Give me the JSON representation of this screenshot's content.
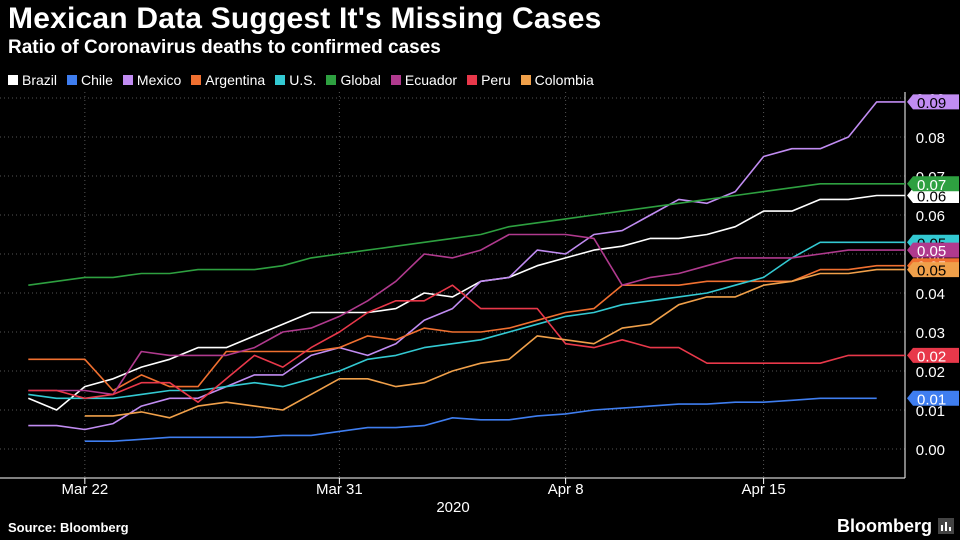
{
  "title": "Mexican Data Suggest It's Missing Cases",
  "subtitle": "Ratio of Coronavirus deaths to confirmed cases",
  "source": "Source: Bloomberg",
  "brand": "Bloomberg",
  "chart_data": {
    "type": "line",
    "xlabel": "2020",
    "ylabel": "",
    "ylim": [
      -0.007,
      0.09
    ],
    "grid": true,
    "legend_position": "top-left",
    "x_tick_labels": [
      {
        "label": "Mar 22",
        "day": 3
      },
      {
        "label": "Mar 31",
        "day": 12
      },
      {
        "label": "Apr 8",
        "day": 20
      },
      {
        "label": "Apr 15",
        "day": 27
      }
    ],
    "y_ticks": [
      0.0,
      0.01,
      0.02,
      0.03,
      0.04,
      0.05,
      0.06,
      0.07,
      0.08,
      0.09
    ],
    "y_tick_labels": [
      "0.00",
      "0.01",
      "0.02",
      "0.03",
      "0.04",
      "0.05",
      "0.06",
      "0.07",
      "0.08",
      "0.09"
    ],
    "series": [
      {
        "name": "Brazil",
        "color": "#ffffff",
        "end_label": "0.06",
        "start_day": 1,
        "values": [
          0.013,
          0.01,
          0.016,
          0.018,
          0.021,
          0.023,
          0.026,
          0.026,
          0.029,
          0.032,
          0.035,
          0.035,
          0.035,
          0.036,
          0.04,
          0.039,
          0.043,
          0.044,
          0.047,
          0.049,
          0.051,
          0.052,
          0.054,
          0.054,
          0.055,
          0.057,
          0.061,
          0.061,
          0.064,
          0.064,
          0.065,
          0.065
        ]
      },
      {
        "name": "Chile",
        "color": "#3f7ef0",
        "end_label": "0.01",
        "start_day": 3,
        "values": [
          0.002,
          0.002,
          0.0025,
          0.003,
          0.003,
          0.003,
          0.003,
          0.0035,
          0.0035,
          0.0045,
          0.0055,
          0.0055,
          0.006,
          0.008,
          0.0075,
          0.0075,
          0.0085,
          0.009,
          0.01,
          0.0105,
          0.011,
          0.0115,
          0.0115,
          0.012,
          0.012,
          0.0125,
          0.013,
          0.013,
          0.013
        ]
      },
      {
        "name": "Mexico",
        "color": "#c18cf2",
        "end_label": "0.09",
        "start_day": 1,
        "values": [
          0.006,
          0.006,
          0.005,
          0.0065,
          0.011,
          0.013,
          0.013,
          0.016,
          0.019,
          0.019,
          0.024,
          0.026,
          0.024,
          0.027,
          0.033,
          0.036,
          0.043,
          0.044,
          0.051,
          0.05,
          0.055,
          0.056,
          0.06,
          0.064,
          0.063,
          0.066,
          0.075,
          0.077,
          0.077,
          0.08,
          0.089,
          0.089
        ]
      },
      {
        "name": "Argentina",
        "color": "#f07030",
        "end_label": "0.05",
        "start_day": 1,
        "values": [
          0.023,
          0.023,
          0.023,
          0.015,
          0.019,
          0.016,
          0.016,
          0.025,
          0.025,
          0.025,
          0.025,
          0.026,
          0.029,
          0.028,
          0.031,
          0.03,
          0.03,
          0.031,
          0.033,
          0.035,
          0.036,
          0.042,
          0.042,
          0.042,
          0.043,
          0.043,
          0.043,
          0.043,
          0.046,
          0.046,
          0.047,
          0.047
        ]
      },
      {
        "name": "U.S.",
        "color": "#33c9d2",
        "end_label": "0.05",
        "start_day": 1,
        "values": [
          0.014,
          0.013,
          0.013,
          0.013,
          0.014,
          0.015,
          0.015,
          0.016,
          0.017,
          0.016,
          0.018,
          0.02,
          0.023,
          0.024,
          0.026,
          0.027,
          0.028,
          0.03,
          0.032,
          0.034,
          0.035,
          0.037,
          0.038,
          0.039,
          0.04,
          0.042,
          0.044,
          0.049,
          0.053,
          0.053,
          0.053,
          0.053
        ]
      },
      {
        "name": "Global",
        "color": "#2ea040",
        "end_label": "0.07",
        "start_day": 1,
        "values": [
          0.042,
          0.043,
          0.044,
          0.044,
          0.045,
          0.045,
          0.046,
          0.046,
          0.046,
          0.047,
          0.049,
          0.05,
          0.051,
          0.052,
          0.053,
          0.054,
          0.055,
          0.057,
          0.058,
          0.059,
          0.06,
          0.061,
          0.062,
          0.063,
          0.064,
          0.065,
          0.066,
          0.067,
          0.068,
          0.068,
          0.068,
          0.068
        ]
      },
      {
        "name": "Ecuador",
        "color": "#b03a8e",
        "end_label": "0.05",
        "start_day": 1,
        "values": [
          0.015,
          0.015,
          0.015,
          0.014,
          0.025,
          0.024,
          0.024,
          0.024,
          0.026,
          0.03,
          0.031,
          0.034,
          0.038,
          0.043,
          0.05,
          0.049,
          0.051,
          0.055,
          0.055,
          0.055,
          0.054,
          0.042,
          0.044,
          0.045,
          0.047,
          0.049,
          0.049,
          0.049,
          0.05,
          0.051,
          0.051,
          0.051
        ]
      },
      {
        "name": "Peru",
        "color": "#e8384a",
        "end_label": "0.02",
        "start_day": 1,
        "values": [
          0.015,
          0.015,
          0.013,
          0.014,
          0.017,
          0.017,
          0.012,
          0.018,
          0.024,
          0.021,
          0.026,
          0.03,
          0.035,
          0.038,
          0.038,
          0.042,
          0.036,
          0.036,
          0.036,
          0.027,
          0.026,
          0.028,
          0.026,
          0.026,
          0.022,
          0.022,
          0.022,
          0.022,
          0.022,
          0.024,
          0.024,
          0.024
        ]
      },
      {
        "name": "Colombia",
        "color": "#f0a04a",
        "end_label": "0.05",
        "start_day": 3,
        "values": [
          0.0085,
          0.0085,
          0.0095,
          0.008,
          0.011,
          0.012,
          0.011,
          0.01,
          0.014,
          0.018,
          0.018,
          0.016,
          0.017,
          0.02,
          0.022,
          0.023,
          0.029,
          0.028,
          0.027,
          0.031,
          0.032,
          0.037,
          0.039,
          0.039,
          0.042,
          0.043,
          0.045,
          0.045,
          0.046,
          0.046
        ]
      }
    ]
  }
}
